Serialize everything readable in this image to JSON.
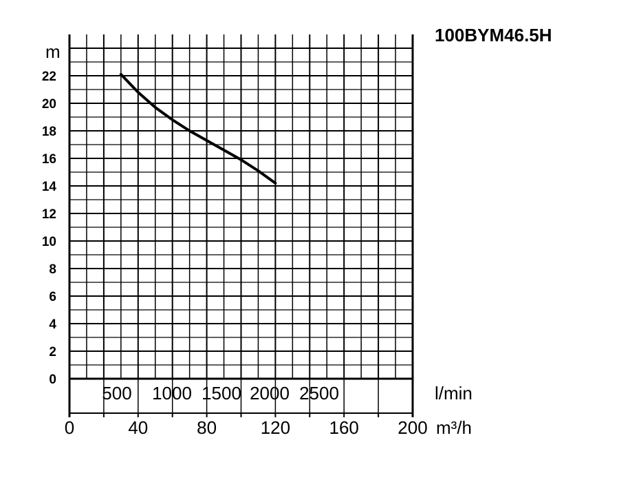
{
  "chart_data": {
    "type": "line",
    "title": "100BYM46.5H",
    "ylabel": "m",
    "xlabel_primary": "l/min",
    "xlabel_secondary": "m³/h",
    "ylim": [
      0,
      24
    ],
    "xlim": [
      0,
      200
    ],
    "y_ticks": [
      "0",
      "2",
      "4",
      "6",
      "8",
      "10",
      "12",
      "14",
      "16",
      "18",
      "20",
      "22"
    ],
    "x_ticks_m3h": [
      "0",
      "40",
      "80",
      "120",
      "160",
      "200"
    ],
    "x_ticks_lmin": [
      "500",
      "1000",
      "1500",
      "2000",
      "2500"
    ],
    "grid": true,
    "series": [
      {
        "x": [
          30,
          40,
          50,
          60,
          70,
          80,
          90,
          100,
          110,
          120
        ],
        "y": [
          22.1,
          20.8,
          19.7,
          18.8,
          18.0,
          17.3,
          16.6,
          15.9,
          15.1,
          14.2
        ]
      }
    ]
  }
}
